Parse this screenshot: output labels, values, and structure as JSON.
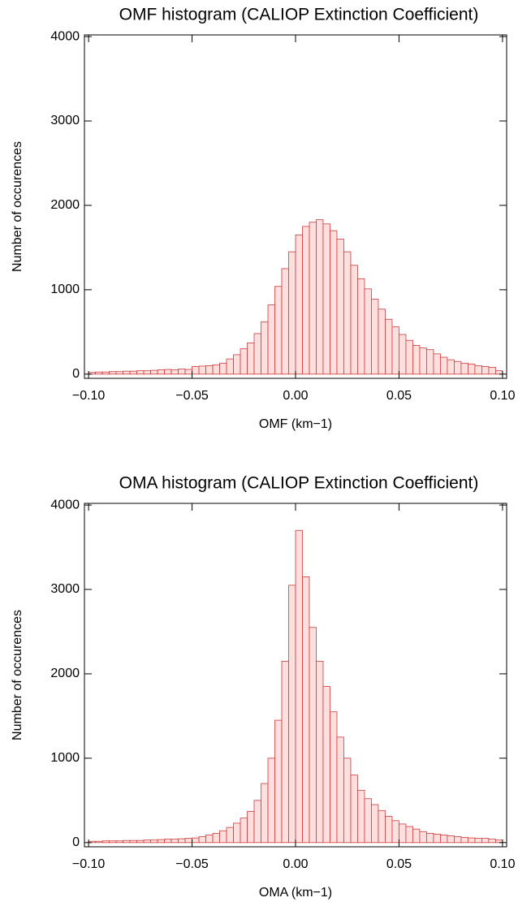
{
  "chart_data": [
    {
      "type": "histogram",
      "title": "OMF histogram (CALIOP Extinction Coefficient)",
      "x_label": "OMF (km−1)",
      "y_label": "Number of occurences",
      "bins": [
        -0.1,
        -0.09667,
        -0.09333,
        -0.09,
        -0.08667,
        -0.08333,
        -0.08,
        -0.07667,
        -0.07333,
        -0.07,
        -0.06667,
        -0.06333,
        -0.06,
        -0.05667,
        -0.05333,
        -0.05,
        -0.04667,
        -0.04333,
        -0.04,
        -0.03667,
        -0.03333,
        -0.03,
        -0.02667,
        -0.02333,
        -0.02,
        -0.01667,
        -0.01333,
        -0.01,
        -0.00667,
        -0.00333,
        0,
        0.00333,
        0.00667,
        0.01,
        0.01333,
        0.01667,
        0.02,
        0.02333,
        0.02667,
        0.03,
        0.03333,
        0.03667,
        0.04,
        0.04333,
        0.04667,
        0.05,
        0.05333,
        0.05667,
        0.06,
        0.06333,
        0.06667,
        0.07,
        0.07333,
        0.07667,
        0.08,
        0.08333,
        0.08667,
        0.09,
        0.09333,
        0.09667,
        0.1
      ],
      "values": [
        20,
        25,
        25,
        30,
        30,
        35,
        35,
        40,
        40,
        45,
        50,
        55,
        50,
        60,
        55,
        90,
        95,
        100,
        110,
        130,
        180,
        230,
        300,
        370,
        480,
        620,
        820,
        1040,
        1250,
        1450,
        1650,
        1750,
        1800,
        1830,
        1780,
        1700,
        1600,
        1450,
        1290,
        1130,
        1010,
        890,
        770,
        650,
        560,
        470,
        400,
        340,
        310,
        290,
        240,
        200,
        170,
        150,
        130,
        120,
        100,
        90,
        80,
        40
      ],
      "color": "#cc3a3a",
      "fill": "#ffdede",
      "xlim": [
        -0.102,
        0.102
      ],
      "xticks": [
        {
          "value": -0.1,
          "label": "−0.10"
        },
        {
          "value": -0.05,
          "label": "−0.05"
        },
        {
          "value": 0,
          "label": "0.00"
        },
        {
          "value": 0.05,
          "label": "0.05"
        },
        {
          "value": 0.1,
          "label": "0.10"
        }
      ],
      "ylim": [
        -50,
        4020
      ],
      "yticks": [
        0,
        1000,
        2000,
        3000,
        4000
      ]
    },
    {
      "type": "histogram",
      "title": "OMA histogram (CALIOP Extinction Coefficient)",
      "x_label": "OMA (km−1)",
      "y_label": "Number of occurences",
      "bins": [
        -0.1,
        -0.09667,
        -0.09333,
        -0.09,
        -0.08667,
        -0.08333,
        -0.08,
        -0.07667,
        -0.07333,
        -0.07,
        -0.06667,
        -0.06333,
        -0.06,
        -0.05667,
        -0.05333,
        -0.05,
        -0.04667,
        -0.04333,
        -0.04,
        -0.03667,
        -0.03333,
        -0.03,
        -0.02667,
        -0.02333,
        -0.02,
        -0.01667,
        -0.01333,
        -0.01,
        -0.00667,
        -0.00333,
        0,
        0.00333,
        0.00667,
        0.01,
        0.01333,
        0.01667,
        0.02,
        0.02333,
        0.02667,
        0.03,
        0.03333,
        0.03667,
        0.04,
        0.04333,
        0.04667,
        0.05,
        0.05333,
        0.05667,
        0.06,
        0.06333,
        0.06667,
        0.07,
        0.07333,
        0.07667,
        0.08,
        0.08333,
        0.08667,
        0.09,
        0.09333,
        0.09667,
        0.1
      ],
      "values": [
        15,
        15,
        20,
        20,
        20,
        25,
        25,
        25,
        30,
        30,
        35,
        40,
        40,
        45,
        50,
        55,
        70,
        90,
        110,
        140,
        180,
        230,
        290,
        370,
        500,
        700,
        1000,
        1450,
        2150,
        3050,
        3700,
        3150,
        2550,
        2150,
        1850,
        1550,
        1250,
        1000,
        800,
        620,
        520,
        450,
        380,
        310,
        260,
        220,
        190,
        160,
        130,
        110,
        100,
        90,
        80,
        70,
        60,
        55,
        50,
        50,
        40,
        30
      ],
      "color": "#cc3a3a",
      "fill": "#ffdede",
      "xlim": [
        -0.102,
        0.102
      ],
      "xticks": [
        {
          "value": -0.1,
          "label": "−0.10"
        },
        {
          "value": -0.05,
          "label": "−0.05"
        },
        {
          "value": 0,
          "label": "0.00"
        },
        {
          "value": 0.05,
          "label": "0.05"
        },
        {
          "value": 0.1,
          "label": "0.10"
        }
      ],
      "ylim": [
        -50,
        4020
      ],
      "yticks": [
        0,
        1000,
        2000,
        3000,
        4000
      ]
    }
  ]
}
